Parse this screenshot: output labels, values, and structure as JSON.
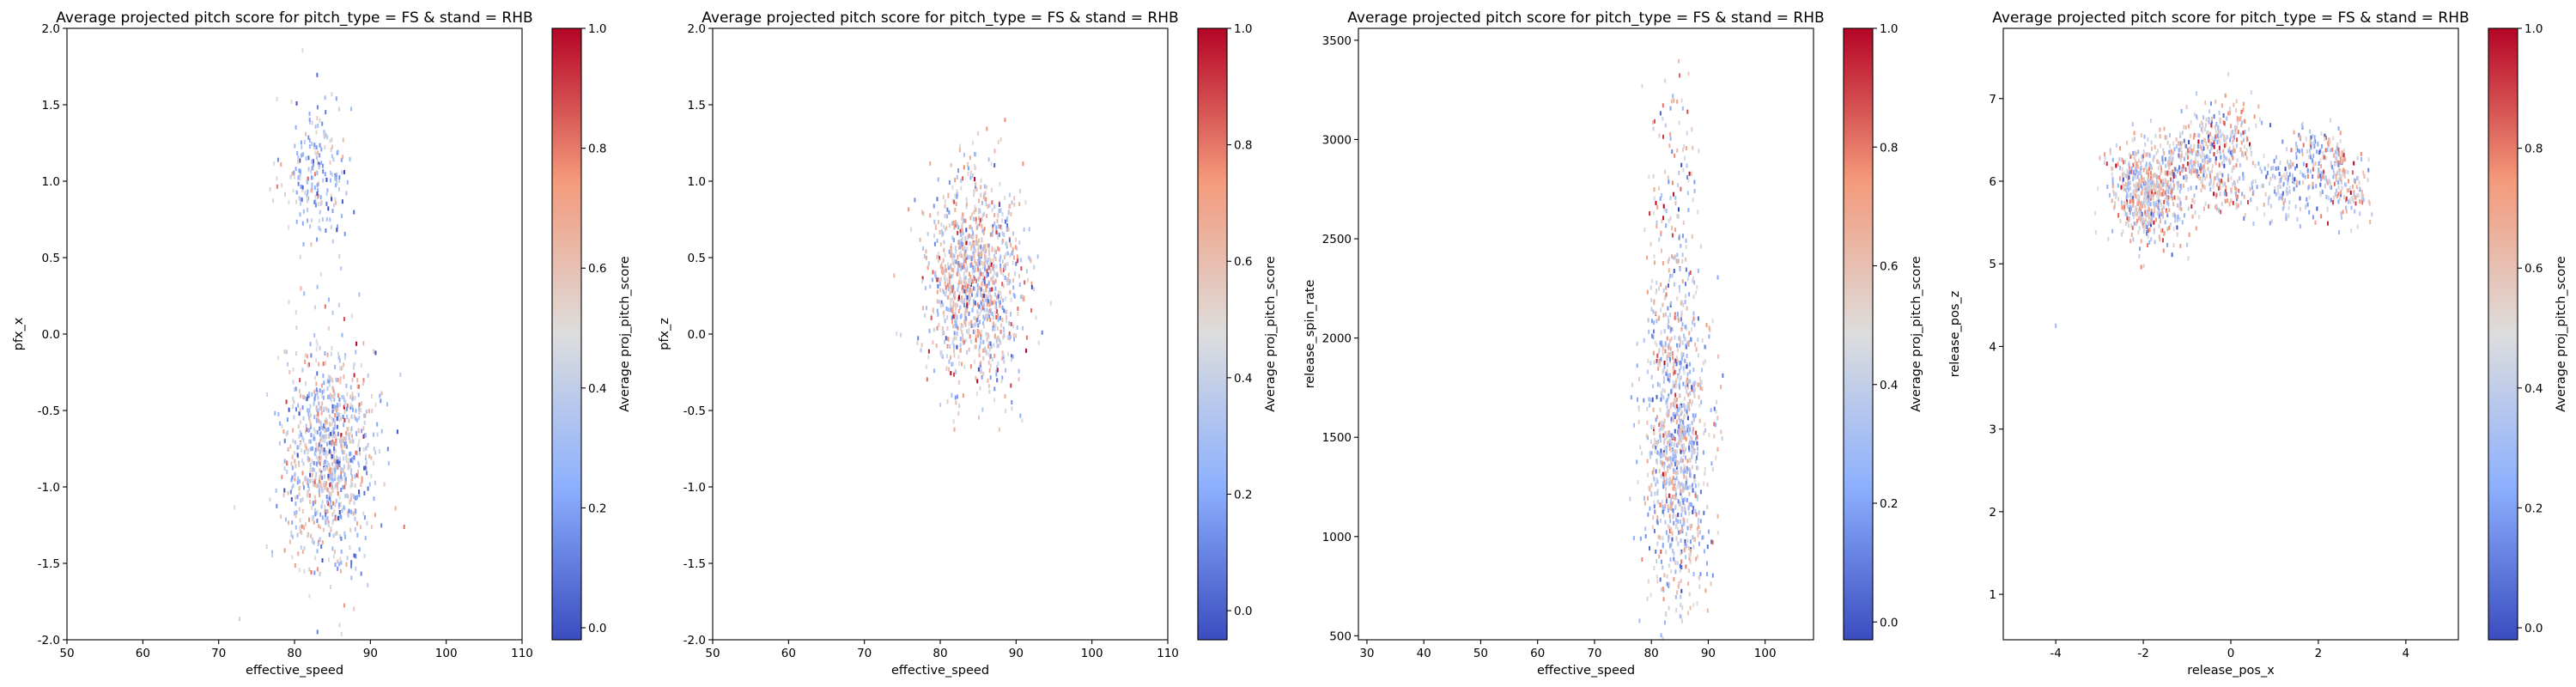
{
  "figure": {
    "description_title": "Average projected pitch score for pitch_type = FS & stand = RHB"
  },
  "colors": {
    "cmap_low": "#3b4cc0",
    "cmap_mid": "#dddddd",
    "cmap_high": "#b40426"
  },
  "chart_data": [
    {
      "type": "scatter",
      "title": "Average projected pitch score for pitch_type = FS & stand = RHB",
      "xlabel": "effective_speed",
      "ylabel": "pfx_x",
      "xlim": [
        50,
        110
      ],
      "ylim": [
        -2.0,
        2.0
      ],
      "xticks": [
        "50",
        "60",
        "70",
        "80",
        "90",
        "100",
        "110"
      ],
      "yticks": [
        "-2.0",
        "-1.5",
        "-1.0",
        "-0.5",
        "0.0",
        "0.5",
        "1.0",
        "1.5",
        "2.0"
      ],
      "colorbar": {
        "label": "Average proj_pitch_score",
        "range": [
          -0.02,
          1.0
        ],
        "ticks": [
          "0.0",
          "0.2",
          "0.4",
          "0.6",
          "0.8",
          "1.0"
        ],
        "cmap": "coolwarm"
      },
      "grid": false,
      "clusters": [
        {
          "x_center": 83,
          "y_center": 1.05,
          "x_sd": 2.2,
          "y_sd": 0.25,
          "count": 220,
          "score_center": 0.35,
          "score_sd": 0.18
        },
        {
          "x_center": 84.5,
          "y_center": -0.8,
          "x_sd": 3.0,
          "y_sd": 0.38,
          "count": 950,
          "score_center": 0.45,
          "score_sd": 0.2
        }
      ]
    },
    {
      "type": "scatter",
      "title": "Average projected pitch score for pitch_type = FS & stand = RHB",
      "xlabel": "effective_speed",
      "ylabel": "pfx_z",
      "xlim": [
        50,
        110
      ],
      "ylim": [
        -2.0,
        2.0
      ],
      "xticks": [
        "50",
        "60",
        "70",
        "80",
        "90",
        "100",
        "110"
      ],
      "yticks": [
        "-2.0",
        "-1.5",
        "-1.0",
        "-0.5",
        "0.0",
        "0.5",
        "1.0",
        "1.5",
        "2.0"
      ],
      "colorbar": {
        "label": "Average proj_pitch_score",
        "range": [
          -0.05,
          1.0
        ],
        "ticks": [
          "0.0",
          "0.2",
          "0.4",
          "0.6",
          "0.8",
          "1.0"
        ],
        "cmap": "coolwarm"
      },
      "grid": false,
      "clusters": [
        {
          "x_center": 84.5,
          "y_center": 0.35,
          "x_sd": 3.2,
          "y_sd": 0.35,
          "count": 1100,
          "score_center": 0.5,
          "score_sd": 0.2
        }
      ]
    },
    {
      "type": "scatter",
      "title": "Average projected pitch score for pitch_type = FS & stand = RHB",
      "xlabel": "effective_speed",
      "ylabel": "release_spin_rate",
      "xlim": [
        28.5,
        108.5
      ],
      "ylim": [
        480,
        3560
      ],
      "xticks": [
        "30",
        "40",
        "50",
        "60",
        "70",
        "80",
        "90",
        "100"
      ],
      "yticks": [
        "500",
        "1000",
        "1500",
        "2000",
        "2500",
        "3000",
        "3500"
      ],
      "colorbar": {
        "label": "Average proj_pitch_score",
        "range": [
          -0.03,
          1.0
        ],
        "ticks": [
          "0.0",
          "0.2",
          "0.4",
          "0.6",
          "0.8",
          "1.0"
        ],
        "cmap": "coolwarm"
      },
      "grid": false,
      "clusters": [
        {
          "x_center": 84.5,
          "y_center": 1450,
          "x_sd": 2.8,
          "y_sd": 380,
          "count": 1000,
          "score_center": 0.45,
          "score_sd": 0.2
        },
        {
          "x_center": 84,
          "y_center": 2600,
          "x_sd": 2.2,
          "y_sd": 380,
          "count": 160,
          "score_center": 0.5,
          "score_sd": 0.22
        }
      ]
    },
    {
      "type": "scatter",
      "title": "Average projected pitch score for pitch_type = FS & stand = RHB",
      "xlabel": "release_pos_x",
      "ylabel": "release_pos_z",
      "xlim": [
        -5.2,
        5.2
      ],
      "ylim": [
        0.45,
        7.85
      ],
      "xticks": [
        "-4",
        "-2",
        "0",
        "2",
        "4"
      ],
      "yticks": [
        "1",
        "2",
        "3",
        "4",
        "5",
        "6",
        "7"
      ],
      "colorbar": {
        "label": "Average proj_pitch_score",
        "range": [
          -0.02,
          1.0
        ],
        "ticks": [
          "0.0",
          "0.2",
          "0.4",
          "0.6",
          "0.8",
          "1.0"
        ],
        "cmap": "coolwarm"
      },
      "grid": false,
      "outlier": {
        "x": -4.0,
        "y": 4.25,
        "score": 0.3
      },
      "clusters": [
        {
          "x_center": -1.9,
          "y_center": 5.85,
          "x_sd": 0.45,
          "y_sd": 0.3,
          "count": 600,
          "score_center": 0.5,
          "score_sd": 0.2
        },
        {
          "x_center": -0.7,
          "y_center": 6.3,
          "x_sd": 0.4,
          "y_sd": 0.25,
          "count": 250,
          "score_center": 0.45,
          "score_sd": 0.2
        },
        {
          "x_center": 0.0,
          "y_center": 6.55,
          "x_sd": 0.3,
          "y_sd": 0.25,
          "count": 120,
          "score_center": 0.55,
          "score_sd": 0.2
        },
        {
          "x_center": 0.0,
          "y_center": 5.85,
          "x_sd": 0.25,
          "y_sd": 0.12,
          "count": 60,
          "score_center": 0.6,
          "score_sd": 0.2
        },
        {
          "x_center": 1.2,
          "y_center": 6.0,
          "x_sd": 0.35,
          "y_sd": 0.25,
          "count": 130,
          "score_center": 0.35,
          "score_sd": 0.18
        },
        {
          "x_center": 2.1,
          "y_center": 6.25,
          "x_sd": 0.35,
          "y_sd": 0.2,
          "count": 140,
          "score_center": 0.45,
          "score_sd": 0.2
        },
        {
          "x_center": 2.6,
          "y_center": 5.9,
          "x_sd": 0.3,
          "y_sd": 0.2,
          "count": 120,
          "score_center": 0.55,
          "score_sd": 0.2
        }
      ]
    }
  ]
}
